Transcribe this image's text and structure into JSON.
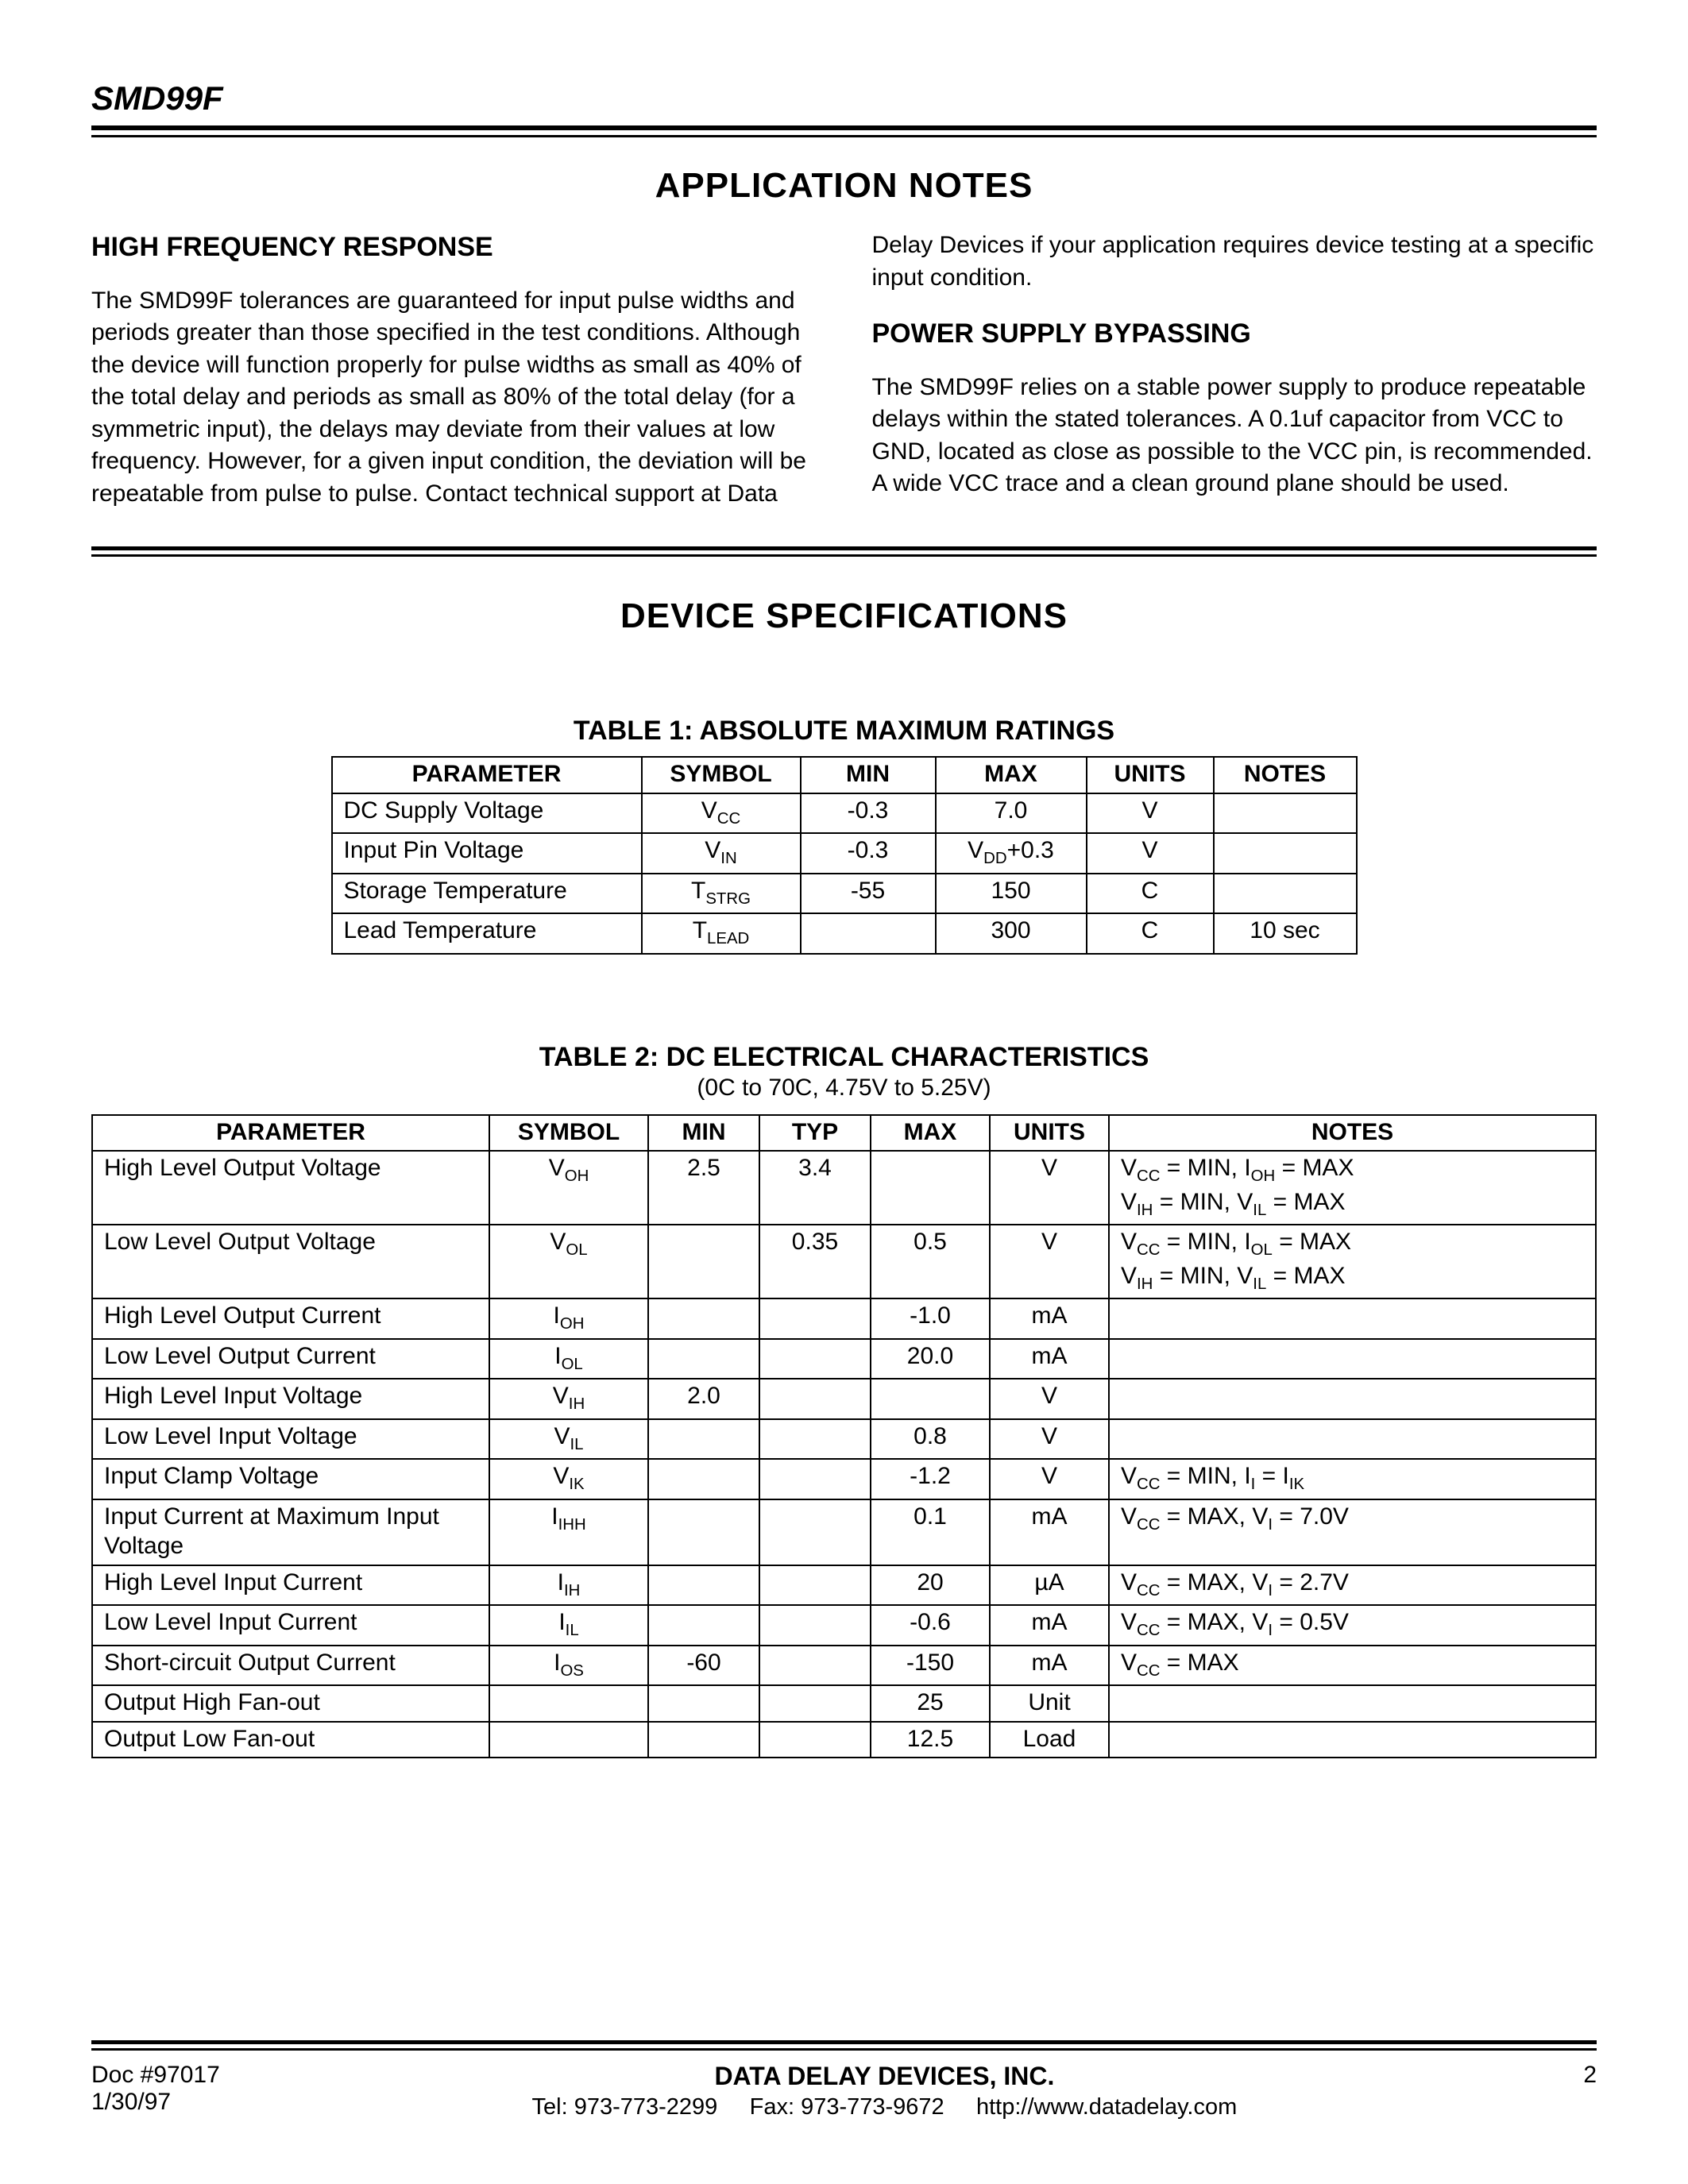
{
  "header": {
    "part_number": "SMD99F"
  },
  "section1": {
    "title": "APPLICATION NOTES",
    "left": {
      "heading": "HIGH FREQUENCY RESPONSE",
      "text": "The SMD99F tolerances are guaranteed for input pulse widths and periods greater than those specified in the test conditions.  Although the device will function properly for pulse widths as small as 40% of the total delay and periods as small as 80% of the total delay (for a symmetric input), the delays may deviate from their values at low frequency.  However, for a given input condition, the deviation will be repeatable from pulse to pulse.  Contact technical support at Data"
    },
    "right": {
      "lead_text": "Delay Devices if your application requires device testing at a specific input condition.",
      "heading": "POWER SUPPLY BYPASSING",
      "text": "The SMD99F relies on a stable power supply to produce repeatable delays within the stated tolerances.  A 0.1uf capacitor from VCC to GND, located as close as possible to the VCC pin, is recommended.  A wide VCC trace and a clean ground plane should be used."
    }
  },
  "section2": {
    "title": "DEVICE SPECIFICATIONS"
  },
  "table1": {
    "title": "TABLE 1:  ABSOLUTE MAXIMUM RATINGS",
    "columns": [
      "PARAMETER",
      "SYMBOL",
      "MIN",
      "MAX",
      "UNITS",
      "NOTES"
    ],
    "col_widths": [
      "360px",
      "170px",
      "140px",
      "160px",
      "130px",
      "150px"
    ],
    "rows": [
      {
        "parameter": "DC Supply Voltage",
        "symbol_main": "V",
        "symbol_sub": "CC",
        "min": "-0.3",
        "max": "7.0",
        "units": "V",
        "notes": ""
      },
      {
        "parameter": "Input Pin Voltage",
        "symbol_main": "V",
        "symbol_sub": "IN",
        "min": "-0.3",
        "max_prefix": "V",
        "max_sub": "DD",
        "max_suffix": "+0.3",
        "units": "V",
        "notes": ""
      },
      {
        "parameter": "Storage Temperature",
        "symbol_main": "T",
        "symbol_sub": "STRG",
        "min": "-55",
        "max": "150",
        "units": "C",
        "notes": ""
      },
      {
        "parameter": "Lead Temperature",
        "symbol_main": "T",
        "symbol_sub": "LEAD",
        "min": "",
        "max": "300",
        "units": "C",
        "notes": "10 sec"
      }
    ]
  },
  "table2": {
    "title": "TABLE 2:  DC ELECTRICAL CHARACTERISTICS",
    "subtitle": "(0C to 70C, 4.75V to 5.25V)",
    "columns": [
      "PARAMETER",
      "SYMBOL",
      "MIN",
      "TYP",
      "MAX",
      "UNITS",
      "NOTES"
    ],
    "col_widths": [
      "470px",
      "170px",
      "110px",
      "110px",
      "120px",
      "120px",
      "auto"
    ],
    "rows": [
      {
        "parameter": "High Level Output Voltage",
        "sym_main": "V",
        "sym_sub": "OH",
        "min": "2.5",
        "typ": "3.4",
        "max": "",
        "units": "V",
        "notes_html": "V<span class='sub'>CC</span> = MIN, I<span class='sub'>OH</span> = MAX<br>V<span class='sub'>IH</span> = MIN, V<span class='sub'>IL</span> = MAX"
      },
      {
        "parameter": "Low Level Output Voltage",
        "sym_main": "V",
        "sym_sub": "OL",
        "min": "",
        "typ": "0.35",
        "max": "0.5",
        "units": "V",
        "notes_html": "V<span class='sub'>CC</span> = MIN, I<span class='sub'>OL</span> = MAX<br>V<span class='sub'>IH</span> = MIN, V<span class='sub'>IL</span> = MAX"
      },
      {
        "parameter": "High Level Output Current",
        "sym_main": "I",
        "sym_sub": "OH",
        "min": "",
        "typ": "",
        "max": "-1.0",
        "units": "mA",
        "notes_html": ""
      },
      {
        "parameter": "Low Level Output Current",
        "sym_main": "I",
        "sym_sub": "OL",
        "min": "",
        "typ": "",
        "max": "20.0",
        "units": "mA",
        "notes_html": ""
      },
      {
        "parameter": "High Level Input Voltage",
        "sym_main": "V",
        "sym_sub": "IH",
        "min": "2.0",
        "typ": "",
        "max": "",
        "units": "V",
        "notes_html": ""
      },
      {
        "parameter": "Low Level Input Voltage",
        "sym_main": "V",
        "sym_sub": "IL",
        "min": "",
        "typ": "",
        "max": "0.8",
        "units": "V",
        "notes_html": ""
      },
      {
        "parameter": "Input Clamp Voltage",
        "sym_main": "V",
        "sym_sub": "IK",
        "min": "",
        "typ": "",
        "max": "-1.2",
        "units": "V",
        "notes_html": "V<span class='sub'>CC</span> = MIN, I<span class='sub'>I</span> = I<span class='sub'>IK</span>"
      },
      {
        "parameter": "Input Current at Maximum Input Voltage",
        "sym_main": "I",
        "sym_sub": "IHH",
        "min": "",
        "typ": "",
        "max": "0.1",
        "units": "mA",
        "notes_html": "V<span class='sub'>CC</span> = MAX, V<span class='sub'>I</span> = 7.0V"
      },
      {
        "parameter": "High Level Input Current",
        "sym_main": "I",
        "sym_sub": "IH",
        "min": "",
        "typ": "",
        "max": "20",
        "units": "µA",
        "notes_html": "V<span class='sub'>CC</span> = MAX, V<span class='sub'>I</span> = 2.7V"
      },
      {
        "parameter": "Low Level Input Current",
        "sym_main": "I",
        "sym_sub": "IL",
        "min": "",
        "typ": "",
        "max": "-0.6",
        "units": "mA",
        "notes_html": "V<span class='sub'>CC</span> = MAX, V<span class='sub'>I</span> = 0.5V"
      },
      {
        "parameter": "Short-circuit Output Current",
        "sym_main": "I",
        "sym_sub": "OS",
        "min": "-60",
        "typ": "",
        "max": "-150",
        "units": "mA",
        "notes_html": "V<span class='sub'>CC</span> = MAX"
      },
      {
        "parameter": "Output High Fan-out",
        "sym_main": "",
        "sym_sub": "",
        "min": "",
        "typ": "",
        "max": "25",
        "units": "Unit",
        "notes_html": ""
      },
      {
        "parameter": "Output Low Fan-out",
        "sym_main": "",
        "sym_sub": "",
        "min": "",
        "typ": "",
        "max": "12.5",
        "units": "Load",
        "notes_html": ""
      }
    ]
  },
  "footer": {
    "doc": "Doc #97017",
    "date": "1/30/97",
    "company": "DATA DELAY DEVICES, INC.",
    "contact_tel": "Tel: 973-773-2299",
    "contact_fax": "Fax: 973-773-9672",
    "contact_url": "http://www.datadelay.com",
    "page": "2"
  },
  "style": {
    "font_family": "Arial",
    "text_color": "#000000",
    "background_color": "#ffffff",
    "rule_color": "#000000"
  }
}
